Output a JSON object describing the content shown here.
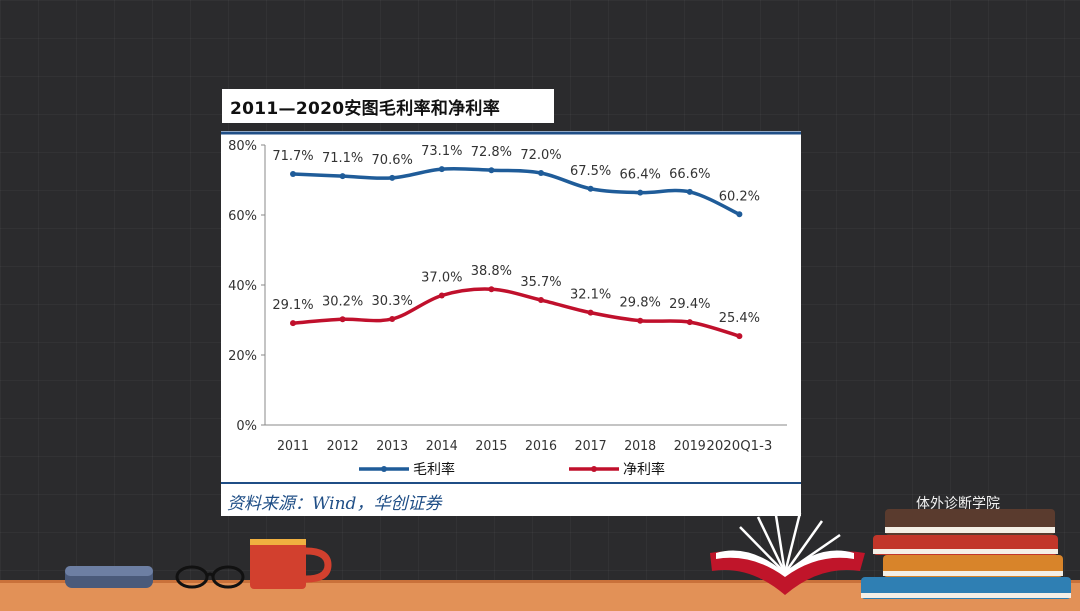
{
  "title": "2011—2020安图毛利率和净利率",
  "source": "资料来源：Wind，华创证券",
  "watermark": "体外诊断学院",
  "colors": {
    "gross": "#1f5c99",
    "net": "#c0102c",
    "frame": "#1f4e86",
    "axis_text": "#333333"
  },
  "chart_data": {
    "type": "line",
    "categories": [
      "2011",
      "2012",
      "2013",
      "2014",
      "2015",
      "2016",
      "2017",
      "2018",
      "2019",
      "2020Q1-3"
    ],
    "ylim": [
      0,
      80
    ],
    "yticks": [
      0,
      20,
      40,
      60,
      80
    ],
    "ytick_labels": [
      "0%",
      "20%",
      "40%",
      "60%",
      "80%"
    ],
    "grid": false,
    "legend": "bottom",
    "series": [
      {
        "name": "毛利率",
        "color": "#1f5c99",
        "values": [
          71.7,
          71.1,
          70.6,
          73.1,
          72.8,
          72.0,
          67.5,
          66.4,
          66.6,
          60.2
        ],
        "labels": [
          "71.7%",
          "71.1%",
          "70.6%",
          "73.1%",
          "72.8%",
          "72.0%",
          "67.5%",
          "66.4%",
          "66.6%",
          "60.2%"
        ]
      },
      {
        "name": "净利率",
        "color": "#c0102c",
        "values": [
          29.1,
          30.2,
          30.3,
          37.0,
          38.8,
          35.7,
          32.1,
          29.8,
          29.4,
          25.4
        ],
        "labels": [
          "29.1%",
          "30.2%",
          "30.3%",
          "37.0%",
          "38.8%",
          "35.7%",
          "32.1%",
          "29.8%",
          "29.4%",
          "25.4%"
        ]
      }
    ]
  }
}
